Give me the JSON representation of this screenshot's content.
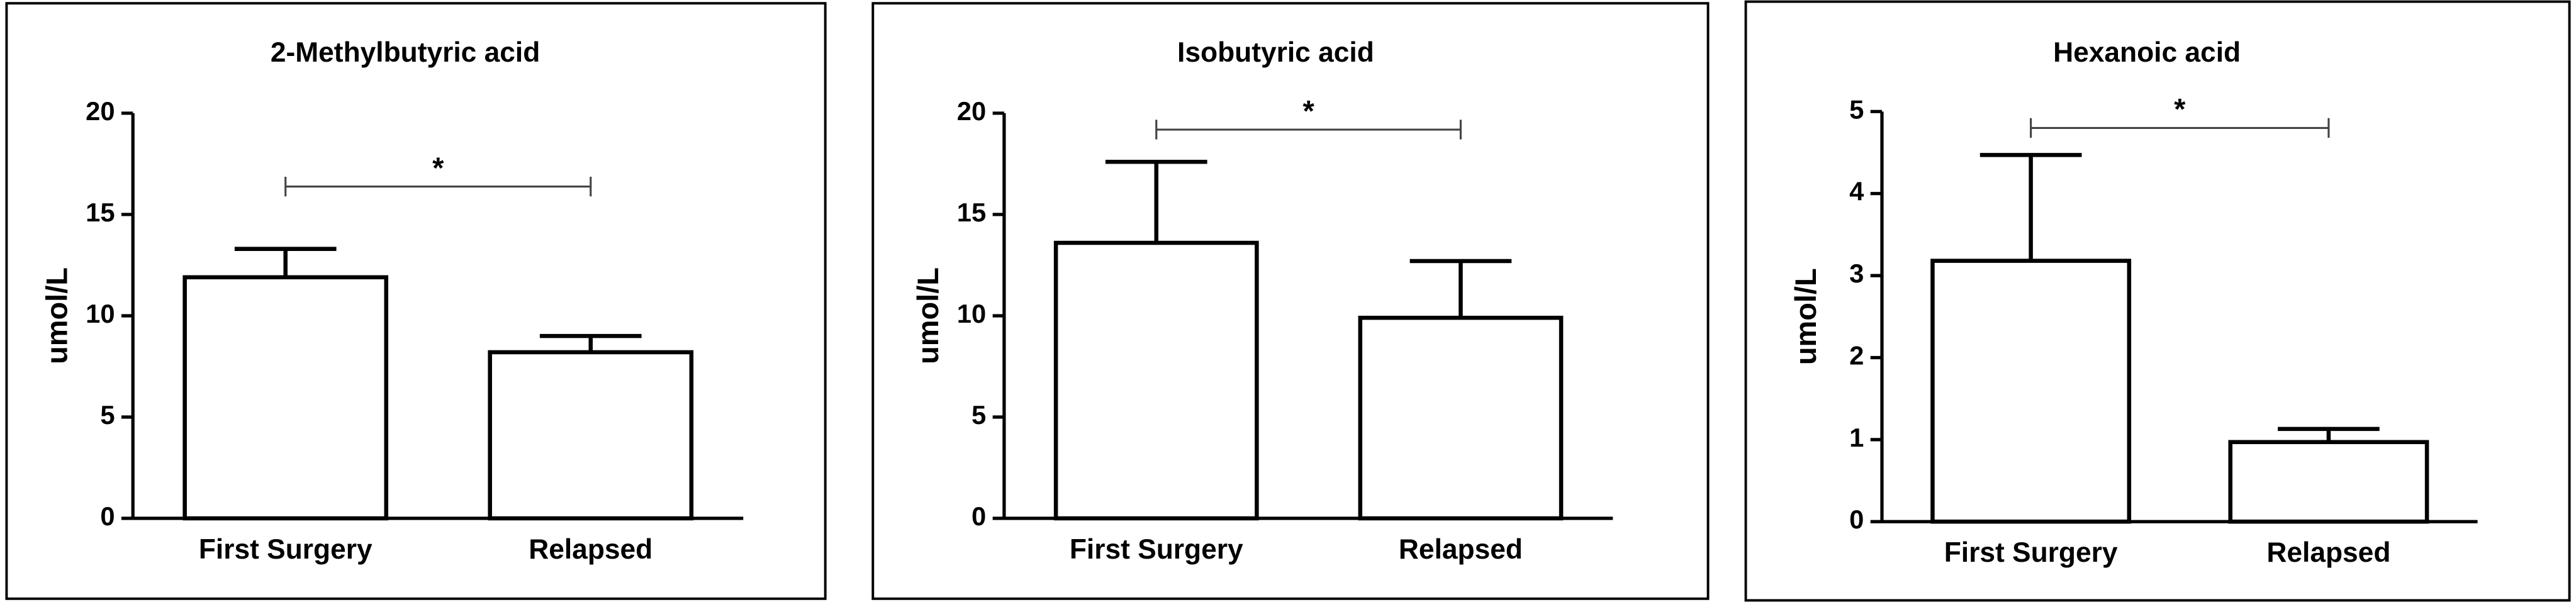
{
  "chart_data": [
    {
      "type": "bar",
      "title": "2-Methylbutyric acid",
      "ylabel": "umol/L",
      "categories": [
        "First Surgery",
        "Relapsed"
      ],
      "values": [
        11.9,
        8.2
      ],
      "errors": [
        1.4,
        0.8
      ],
      "color": "#ffffff",
      "ylim": [
        0,
        20
      ],
      "yticks": [
        0,
        5,
        10,
        15,
        20
      ],
      "annotation": "*"
    },
    {
      "type": "bar",
      "title": "Isobutyric acid",
      "ylabel": "umol/L",
      "categories": [
        "First Surgery",
        "Relapsed"
      ],
      "values": [
        13.6,
        9.9
      ],
      "errors": [
        4.0,
        2.8
      ],
      "color": "#ffffff",
      "ylim": [
        0,
        20
      ],
      "yticks": [
        0,
        5,
        10,
        15,
        20
      ],
      "annotation": "*"
    },
    {
      "type": "bar",
      "title": "Hexanoic acid",
      "ylabel": "umol/L",
      "categories": [
        "First Surgery",
        "Relapsed"
      ],
      "values": [
        3.18,
        0.97
      ],
      "errors": [
        1.29,
        0.16
      ],
      "color": "#ffffff",
      "ylim": [
        0,
        5
      ],
      "yticks": [
        0,
        1,
        2,
        3,
        4,
        5
      ],
      "annotation": "*"
    }
  ]
}
